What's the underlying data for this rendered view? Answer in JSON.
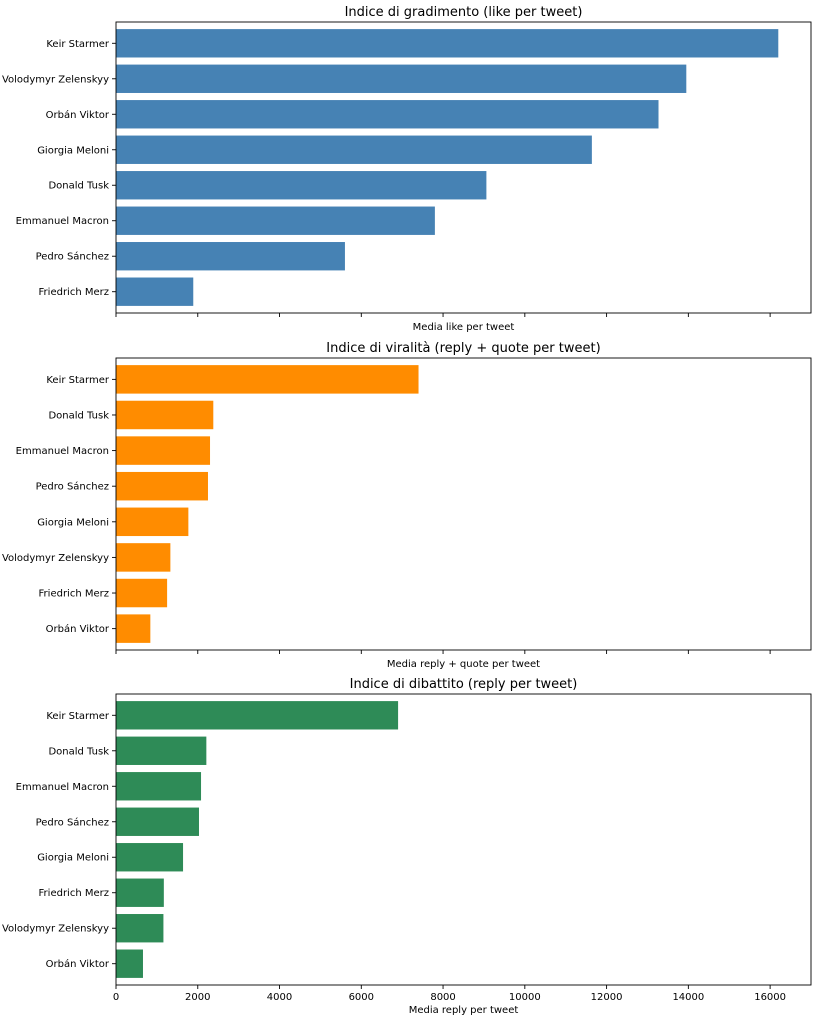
{
  "chart_data": [
    {
      "type": "bar",
      "orientation": "horizontal",
      "title": "Indice di gradimento (like per tweet)",
      "xlabel": "Media like per tweet",
      "ylabel": "",
      "color": "#4682b4",
      "categories": [
        "Keir Starmer",
        "Volodymyr Zelenskyy",
        "Orbán Viktor",
        "Giorgia Meloni",
        "Donald Tusk",
        "Emmanuel Macron",
        "Pedro Sánchez",
        "Friedrich Merz"
      ],
      "values": [
        16200,
        13950,
        13270,
        11640,
        9060,
        7800,
        5600,
        1890
      ],
      "xlim": [
        0,
        17000
      ],
      "show_tick_labels": false,
      "grid": false
    },
    {
      "type": "bar",
      "orientation": "horizontal",
      "title": "Indice di viralità (reply + quote per tweet)",
      "xlabel": "Media reply + quote per tweet",
      "ylabel": "",
      "color": "#ff8c00",
      "categories": [
        "Keir Starmer",
        "Donald Tusk",
        "Emmanuel Macron",
        "Pedro Sánchez",
        "Giorgia Meloni",
        "Volodymyr Zelenskyy",
        "Friedrich Merz",
        "Orbán Viktor"
      ],
      "values": [
        7400,
        2380,
        2300,
        2250,
        1770,
        1330,
        1250,
        840
      ],
      "xlim": [
        0,
        17000
      ],
      "show_tick_labels": false,
      "grid": false
    },
    {
      "type": "bar",
      "orientation": "horizontal",
      "title": "Indice di dibattito (reply per tweet)",
      "xlabel": "Media reply per tweet",
      "ylabel": "",
      "color": "#2e8b57",
      "categories": [
        "Keir Starmer",
        "Donald Tusk",
        "Emmanuel Macron",
        "Pedro Sánchez",
        "Giorgia Meloni",
        "Friedrich Merz",
        "Volodymyr Zelenskyy",
        "Orbán Viktor"
      ],
      "values": [
        6900,
        2210,
        2080,
        2030,
        1640,
        1170,
        1160,
        660
      ],
      "xlim": [
        0,
        17000
      ],
      "xticks": [
        0,
        2000,
        4000,
        6000,
        8000,
        10000,
        12000,
        14000,
        16000
      ],
      "show_tick_labels": true,
      "grid": false
    }
  ]
}
